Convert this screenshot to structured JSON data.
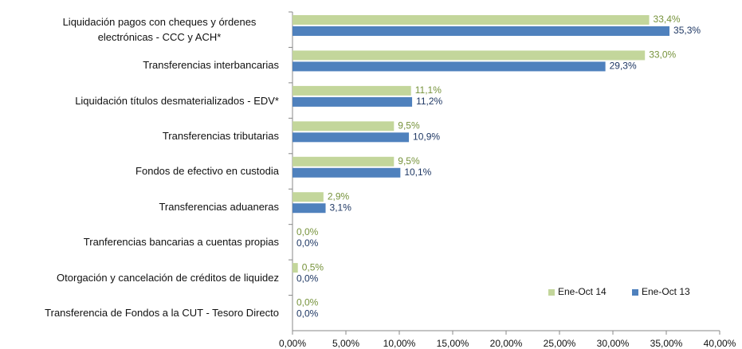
{
  "chart_data": {
    "type": "hbar",
    "categories": [
      "Liquidación pagos con cheques y órdenes electrónicas - CCC y ACH*",
      "Transferencias interbancarias",
      "Liquidación títulos desmaterializados - EDV*",
      "Transferencias tributarias",
      "Fondos de efectivo en custodia",
      "Transferencias aduaneras",
      "Tranferencias bancarias a cuentas propias",
      "Otorgación y cancelación de créditos de liquidez",
      "Transferencia de Fondos a la CUT - Tesoro Directo"
    ],
    "series": [
      {
        "name": "Ene-Oct 14",
        "color": "#c3d69b",
        "label_color": "#77933c",
        "values": [
          33.4,
          33.0,
          11.1,
          9.5,
          9.5,
          2.9,
          0.0,
          0.5,
          0.0
        ],
        "value_labels": [
          "33,4%",
          "33,0%",
          "11,1%",
          "9,5%",
          "9,5%",
          "2,9%",
          "0,0%",
          "0,5%",
          "0,0%"
        ]
      },
      {
        "name": "Ene-Oct 13",
        "color": "#4f81bd",
        "label_color": "#1f3864",
        "values": [
          35.3,
          29.3,
          11.2,
          10.9,
          10.1,
          3.1,
          0.0,
          0.0,
          0.0
        ],
        "value_labels": [
          "35,3%",
          "29,3%",
          "11,2%",
          "10,9%",
          "10,1%",
          "3,1%",
          "0,0%",
          "0,0%",
          "0,0%"
        ]
      }
    ],
    "xlim": [
      0,
      40
    ],
    "xticks": [
      {
        "value": 0,
        "label": "0,00%"
      },
      {
        "value": 5,
        "label": "5,00%"
      },
      {
        "value": 10,
        "label": "10,00%"
      },
      {
        "value": 15,
        "label": "15,00%"
      },
      {
        "value": 20,
        "label": "20,00%"
      },
      {
        "value": 25,
        "label": "25,00%"
      },
      {
        "value": 30,
        "label": "30,00%"
      },
      {
        "value": 35,
        "label": "35,00%"
      },
      {
        "value": 40,
        "label": "40,00%"
      }
    ],
    "legend": "lower right"
  }
}
